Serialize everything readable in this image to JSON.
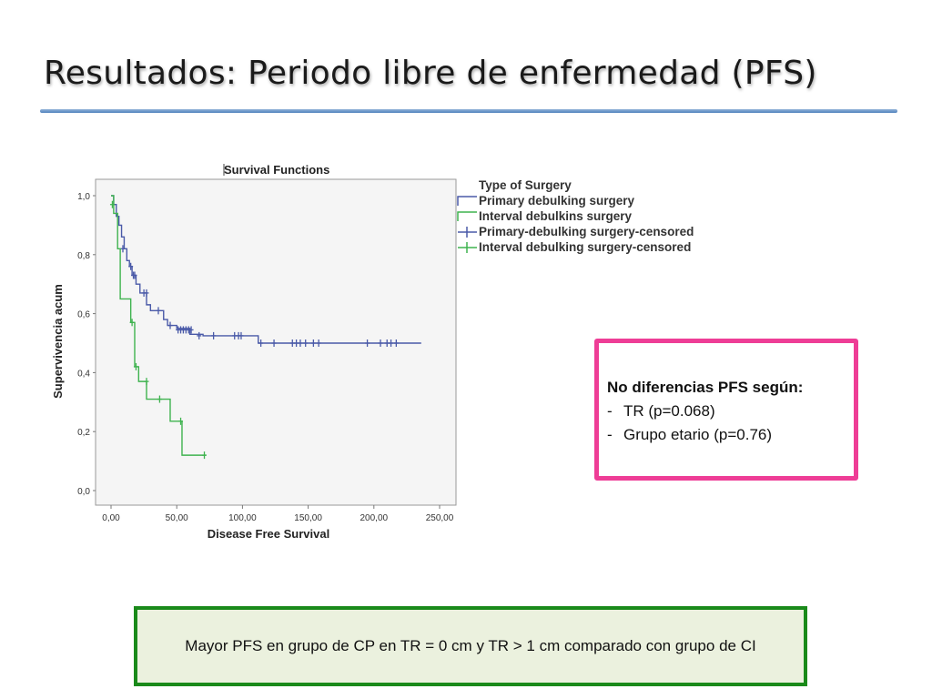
{
  "slide": {
    "title": "Resultados: Periodo libre de enfermedad (PFS)"
  },
  "pink_box": {
    "heading": "No diferencias PFS según:",
    "items": [
      "TR (p=0.068)",
      "Grupo etario (p=0.76)"
    ],
    "bullet": "-",
    "border_color": "#ee3d96"
  },
  "green_box": {
    "text": "Mayor PFS en grupo de CP en TR = 0 cm y TR > 1 cm comparado con grupo de CI",
    "border_color": "#1a8a1a",
    "fill_color": "#ebf1de"
  },
  "chart_data": {
    "type": "line",
    "subtype": "kaplan-meier step",
    "title": "Survival Functions",
    "xlabel": "Disease Free Survival",
    "ylabel": "Supervivencia acum",
    "xlim": [
      0,
      250
    ],
    "ylim": [
      0,
      1.0
    ],
    "x_ticks": [
      "0,00",
      "50,00",
      "100,00",
      "150,00",
      "200,00",
      "250,00"
    ],
    "y_ticks": [
      "0,0",
      "0,2",
      "0,4",
      "0,6",
      "0,8",
      "1,0"
    ],
    "legend_title": "Type of Surgery",
    "legend_position": "right",
    "legend": [
      "Primary debulking surgery",
      "Interval debulkins surgery",
      "Primary-debulking surgery-censored",
      "Interval debulking surgery-censored"
    ],
    "series": [
      {
        "name": "Primary debulking surgery",
        "color": "#4a5aa8",
        "steps": [
          [
            0,
            1.0
          ],
          [
            2,
            0.97
          ],
          [
            4,
            0.93
          ],
          [
            6,
            0.9
          ],
          [
            8,
            0.86
          ],
          [
            10,
            0.82
          ],
          [
            12,
            0.78
          ],
          [
            14,
            0.76
          ],
          [
            16,
            0.73
          ],
          [
            19,
            0.7
          ],
          [
            22,
            0.67
          ],
          [
            27,
            0.63
          ],
          [
            30,
            0.61
          ],
          [
            40,
            0.58
          ],
          [
            43,
            0.56
          ],
          [
            50,
            0.55
          ],
          [
            60,
            0.53
          ],
          [
            70,
            0.525
          ],
          [
            112,
            0.5
          ],
          [
            236,
            0.5
          ]
        ],
        "censored": [
          [
            9,
            0.82
          ],
          [
            15,
            0.76
          ],
          [
            17,
            0.73
          ],
          [
            18,
            0.73
          ],
          [
            25,
            0.67
          ],
          [
            27,
            0.67
          ],
          [
            36,
            0.61
          ],
          [
            45,
            0.56
          ],
          [
            51,
            0.545
          ],
          [
            53,
            0.545
          ],
          [
            55,
            0.545
          ],
          [
            57,
            0.545
          ],
          [
            59,
            0.545
          ],
          [
            61,
            0.545
          ],
          [
            67,
            0.525
          ],
          [
            78,
            0.525
          ],
          [
            94,
            0.525
          ],
          [
            97,
            0.525
          ],
          [
            99,
            0.525
          ],
          [
            114,
            0.5
          ],
          [
            124,
            0.5
          ],
          [
            138,
            0.5
          ],
          [
            141,
            0.5
          ],
          [
            144,
            0.5
          ],
          [
            148,
            0.5
          ],
          [
            154,
            0.5
          ],
          [
            158,
            0.5
          ],
          [
            195,
            0.5
          ],
          [
            205,
            0.5
          ],
          [
            210,
            0.5
          ],
          [
            213,
            0.5
          ],
          [
            217,
            0.5
          ]
        ]
      },
      {
        "name": "Interval debulkins surgery",
        "color": "#3fb34f",
        "steps": [
          [
            0,
            1.0
          ],
          [
            2,
            0.94
          ],
          [
            5,
            0.82
          ],
          [
            7,
            0.65
          ],
          [
            15,
            0.57
          ],
          [
            18,
            0.42
          ],
          [
            21,
            0.37
          ],
          [
            27,
            0.31
          ],
          [
            45,
            0.235
          ],
          [
            54,
            0.12
          ],
          [
            72,
            0.12
          ]
        ],
        "censored": [
          [
            1,
            0.97
          ],
          [
            16,
            0.57
          ],
          [
            19,
            0.42
          ],
          [
            27,
            0.37
          ],
          [
            37,
            0.31
          ],
          [
            53,
            0.235
          ],
          [
            71,
            0.12
          ]
        ]
      }
    ]
  }
}
